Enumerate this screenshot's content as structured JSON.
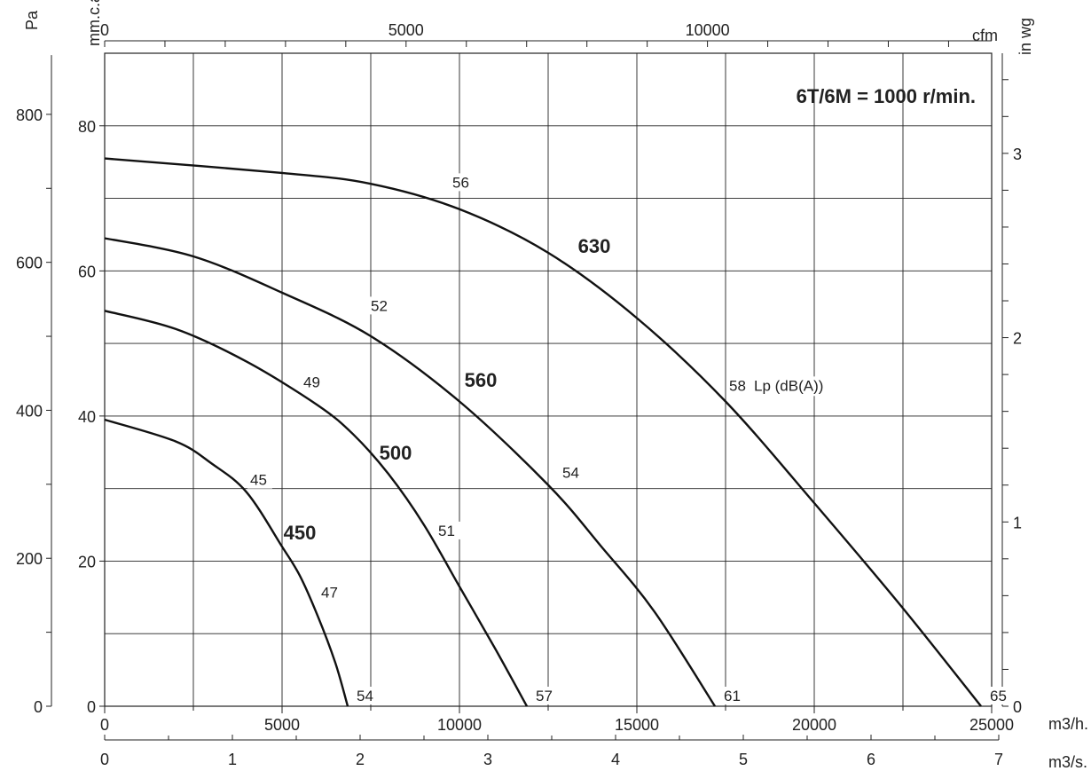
{
  "chart_data": {
    "type": "line",
    "title": "6T/6M = 1000 r/min.",
    "xlabel": "m3/h.",
    "xlabel_secondary": "m3/s.",
    "xlabel_top": "cfm",
    "ylabel_left_outer": "Pa",
    "ylabel_left_inner": "mm.c.a.",
    "ylabel_right": "in wg",
    "lp_unit_label": "Lp (dB(A))",
    "xlim": [
      0,
      25000
    ],
    "ylim": [
      0,
      90
    ],
    "grid": true,
    "ticks": {
      "m3h": [
        "0",
        "5000",
        "10000",
        "15000",
        "20000",
        "25000"
      ],
      "m3s": [
        "0",
        "1",
        "2",
        "3",
        "4",
        "5",
        "6",
        "7"
      ],
      "cfm": [
        "0",
        "5000",
        "10000"
      ],
      "pa": [
        "0",
        "200",
        "400",
        "600",
        "800"
      ],
      "mmca": [
        "0",
        "20",
        "40",
        "60",
        "80"
      ],
      "inwg": [
        "0",
        "1",
        "2",
        "3"
      ]
    },
    "series": [
      {
        "name": "450",
        "x": [
          0,
          2000,
          3000,
          4000,
          5000,
          5500,
          6000,
          6500,
          6850
        ],
        "y": [
          39.5,
          36.5,
          33.5,
          29.5,
          22,
          18,
          12.5,
          6,
          0
        ],
        "noise_labels": [
          {
            "x": 4000,
            "y": 30,
            "text": "45"
          },
          {
            "x": 6000,
            "y": 14.5,
            "text": "47"
          },
          {
            "x": 6850,
            "y": 0,
            "text": "54"
          }
        ]
      },
      {
        "name": "500",
        "x": [
          0,
          2000,
          4000,
          6000,
          7000,
          8000,
          9000,
          10000,
          11000,
          11900
        ],
        "y": [
          54.5,
          52,
          47.5,
          41.5,
          37.5,
          32,
          25,
          16.5,
          8,
          0
        ],
        "noise_labels": [
          {
            "x": 5500,
            "y": 43.5,
            "text": "49"
          },
          {
            "x": 9300,
            "y": 23,
            "text": "51"
          },
          {
            "x": 11900,
            "y": 0,
            "text": "57"
          }
        ]
      },
      {
        "name": "560",
        "x": [
          0,
          2500,
          5000,
          7500,
          10000,
          12500,
          14000,
          15500,
          17200
        ],
        "y": [
          64.5,
          62,
          57,
          51,
          42,
          30.5,
          22,
          13,
          0
        ],
        "noise_labels": [
          {
            "x": 7400,
            "y": 54,
            "text": "52"
          },
          {
            "x": 12800,
            "y": 31,
            "text": "54"
          },
          {
            "x": 17200,
            "y": 0,
            "text": "61"
          }
        ]
      },
      {
        "name": "630",
        "x": [
          0,
          5000,
          7500,
          10000,
          12500,
          15000,
          17500,
          20000,
          22500,
          24700
        ],
        "y": [
          75.5,
          73.5,
          72,
          68.5,
          62.5,
          53.5,
          42,
          28,
          13.5,
          0
        ],
        "noise_labels": [
          {
            "x": 9700,
            "y": 71,
            "text": "56"
          },
          {
            "x": 17500,
            "y": 43,
            "text": "58"
          },
          {
            "x": 24700,
            "y": 0,
            "text": "65"
          }
        ]
      }
    ]
  }
}
